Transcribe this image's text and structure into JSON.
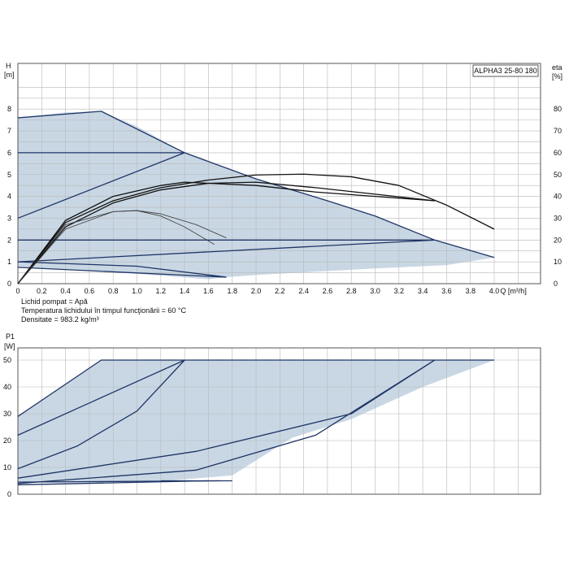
{
  "chart_data": [
    {
      "type": "line",
      "title": "ALPHA3 25-80 180",
      "ylabel_left": [
        "H",
        "[m]"
      ],
      "ylabel_right": [
        "eta",
        "[%]"
      ],
      "xlabel": "Q [m³/h]",
      "xlim": [
        0,
        4.2
      ],
      "ylim_left": [
        0,
        9
      ],
      "ylim_right": [
        0,
        90
      ],
      "x_ticks": [
        "0",
        "0.2",
        "0.4",
        "0.6",
        "0.8",
        "1.0",
        "1.2",
        "1.4",
        "1.6",
        "1.8",
        "2.0",
        "2.2",
        "2.4",
        "2.6",
        "2.8",
        "3.0",
        "3.2",
        "3.4",
        "3.6",
        "3.8",
        "4.0"
      ],
      "y_ticks_left": [
        "0",
        "1",
        "2",
        "3",
        "4",
        "5",
        "6",
        "7",
        "8"
      ],
      "y_ticks_right": [
        "0",
        "10",
        "20",
        "30",
        "40",
        "50",
        "60",
        "70",
        "80"
      ],
      "grid": true,
      "notes": [
        "Lichid pompat = Apă",
        "Temperatura lichidului în timpul funcţionării = 60 °C",
        "Densitate = 983.2 kg/m³"
      ],
      "envelope": [
        [
          0,
          7.6
        ],
        [
          0.4,
          7.85
        ],
        [
          0.7,
          7.9
        ],
        [
          1.0,
          7.2
        ],
        [
          1.4,
          6.0
        ],
        [
          2.0,
          4.8
        ],
        [
          2.6,
          3.8
        ],
        [
          3.0,
          3.1
        ],
        [
          3.5,
          2.0
        ],
        [
          4.0,
          1.2
        ],
        [
          3.6,
          0.85
        ],
        [
          3.0,
          0.7
        ],
        [
          2.5,
          0.55
        ],
        [
          2.0,
          0.4
        ],
        [
          1.75,
          0.3
        ],
        [
          1.6,
          0.2
        ],
        [
          1.0,
          0.45
        ],
        [
          0.5,
          0.65
        ],
        [
          0,
          0.75
        ]
      ],
      "series": [
        {
          "kind": "head",
          "x": [
            0,
            0.7,
            1.4,
            2.0,
            2.6,
            3.0,
            3.5,
            4.0
          ],
          "y": [
            7.6,
            7.9,
            6.0,
            4.8,
            3.8,
            3.1,
            2.0,
            1.2
          ]
        },
        {
          "kind": "head",
          "x": [
            0,
            1.4
          ],
          "y": [
            6.0,
            6.0
          ]
        },
        {
          "kind": "head",
          "x": [
            0,
            1.4
          ],
          "y": [
            3.0,
            6.0
          ]
        },
        {
          "kind": "head",
          "x": [
            0,
            3.5
          ],
          "y": [
            2.0,
            2.0
          ]
        },
        {
          "kind": "head",
          "x": [
            0,
            3.5
          ],
          "y": [
            1.0,
            2.0
          ]
        },
        {
          "kind": "head",
          "x": [
            0,
            1.75
          ],
          "y": [
            0.75,
            0.3
          ]
        },
        {
          "kind": "head",
          "x": [
            0,
            1.0,
            1.75
          ],
          "y": [
            1.0,
            0.8,
            0.3
          ]
        },
        {
          "kind": "eta",
          "x": [
            0,
            0.4,
            0.8,
            1.2,
            1.6,
            2.0,
            2.4,
            2.8,
            3.2,
            3.6,
            4.0
          ],
          "y": [
            0,
            28,
            38,
            44,
            47.5,
            49.8,
            50.2,
            49,
            45,
            36,
            25
          ]
        },
        {
          "kind": "eta",
          "x": [
            0,
            0.4,
            0.8,
            1.2,
            1.4,
            2.0,
            2.5,
            3.0,
            3.5
          ],
          "y": [
            0,
            29,
            40,
            45,
            46.5,
            45,
            42,
            40,
            38
          ]
        },
        {
          "kind": "eta",
          "x": [
            0,
            0.4,
            0.8,
            1.2,
            1.6,
            2.0,
            2.5,
            3.0,
            3.5
          ],
          "y": [
            0,
            26,
            37,
            43,
            46,
            46.5,
            44,
            41,
            38
          ]
        },
        {
          "kind": "eta",
          "x": [
            0,
            0.4,
            0.8,
            1.0,
            1.2,
            1.4,
            1.65
          ],
          "y": [
            0,
            25,
            33,
            33.5,
            31,
            26,
            18
          ]
        },
        {
          "kind": "eta",
          "x": [
            0,
            0.4,
            0.8,
            1.0,
            1.2,
            1.5,
            1.75
          ],
          "y": [
            0,
            27,
            33,
            33.5,
            32,
            27,
            21
          ]
        }
      ]
    },
    {
      "type": "line",
      "ylabel": [
        "P1",
        "[W]"
      ],
      "xlim": [
        0,
        4.2
      ],
      "ylim": [
        0,
        55
      ],
      "y_ticks": [
        "0",
        "10",
        "20",
        "30",
        "40",
        "50"
      ],
      "grid": true,
      "envelope": [
        [
          0,
          29
        ],
        [
          0.7,
          50
        ],
        [
          4.0,
          50
        ],
        [
          3.4,
          40
        ],
        [
          2.8,
          28
        ],
        [
          2.3,
          21
        ],
        [
          1.8,
          7
        ],
        [
          1.2,
          4.8
        ],
        [
          0,
          4.5
        ]
      ],
      "series": [
        {
          "x": [
            0,
            0.7,
            4.0
          ],
          "y": [
            29,
            50,
            50
          ]
        },
        {
          "x": [
            0,
            0.6,
            1.4
          ],
          "y": [
            22,
            34,
            50
          ]
        },
        {
          "x": [
            0,
            0.5,
            1.0,
            1.4
          ],
          "y": [
            9.5,
            18,
            31,
            50
          ]
        },
        {
          "x": [
            0,
            1.5,
            2.8,
            3.5
          ],
          "y": [
            6,
            16,
            30,
            50
          ]
        },
        {
          "x": [
            0,
            1.5,
            2.5,
            3.5
          ],
          "y": [
            4,
            9,
            22,
            50
          ]
        },
        {
          "x": [
            0,
            1.6
          ],
          "y": [
            3.5,
            5
          ]
        },
        {
          "x": [
            0,
            1.7
          ],
          "y": [
            4.5,
            5
          ]
        },
        {
          "x": [
            1.2,
            1.8
          ],
          "y": [
            5,
            5
          ]
        }
      ]
    }
  ]
}
